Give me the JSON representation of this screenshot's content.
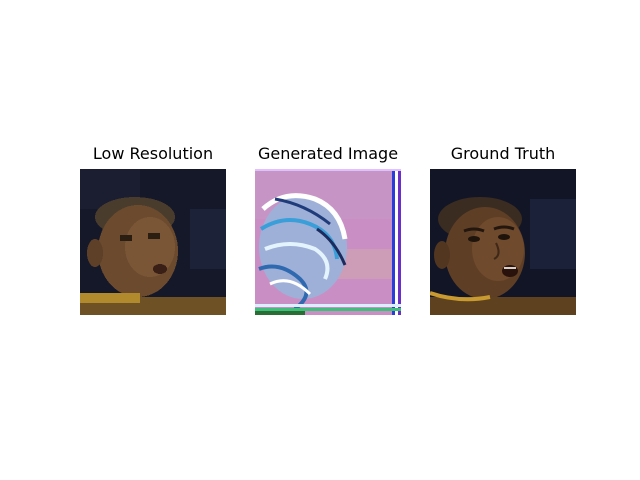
{
  "figure": {
    "panels": [
      {
        "title": "Low Resolution",
        "image": "low-resolution-face-photo"
      },
      {
        "title": "Generated Image",
        "image": "generated-noisy-face-image"
      },
      {
        "title": "Ground Truth",
        "image": "ground-truth-face-photo"
      }
    ],
    "colors": {
      "background": "#ffffff",
      "skin": "#6b4a2e",
      "backdrop": "#15182a",
      "generated_tint": "#c98fc4"
    }
  }
}
